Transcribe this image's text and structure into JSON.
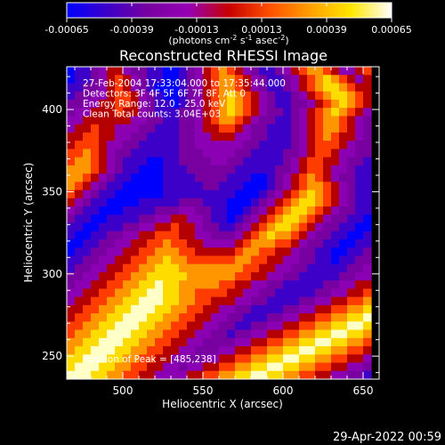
{
  "chart_data": {
    "type": "heatmap",
    "title": "Reconstructed RHESSI Image",
    "xlabel": "Heliocentric X (arcsec)",
    "ylabel": "Heliocentric Y (arcsec)",
    "xlim": [
      465,
      660
    ],
    "ylim": [
      236,
      426
    ],
    "x_ticks": [
      500,
      550,
      600,
      650
    ],
    "y_ticks": [
      250,
      300,
      350,
      400
    ],
    "colorbar": {
      "min": -0.00065,
      "max": 0.00065,
      "tick_values": [
        -0.00065,
        -0.00039,
        -0.00013,
        0.00013,
        0.00039,
        0.00065
      ],
      "tick_labels": [
        "-0.00065",
        "-0.00039",
        "-0.00013",
        "0.00013",
        "0.00039",
        "0.00065"
      ],
      "unit_parts": [
        "(photons cm",
        "-2",
        " s",
        "-1",
        " asec",
        "-2",
        ")"
      ]
    },
    "annotations": [
      "27-Feb-2004 17:33:04.000 to 17:35:44.000",
      "Detectors: 3F 4F 5F 6F 7F 8F, Att 0",
      "Energy Range: 12.0 - 25.0 keV",
      "Clean     Total counts: 3.04E+03"
    ],
    "peak_label": "Position of Peak = [485,238]",
    "grid": false,
    "colormap": [
      "#0000ff",
      "#3c00c8",
      "#7800a0",
      "#8c00b4",
      "#b40000",
      "#ff3c00",
      "#ff9600",
      "#ffdc00",
      "#ffffc8"
    ],
    "grid_x_start": 465,
    "grid_y_start": 426,
    "grid_cell_arcsec": 5,
    "grid_rows_top_to_bottom": [
      "ABBCDEEDCCBBAABCDEFGFEDCBBCDEFGGFEDDEF",
      "ABBCDEFEDCBBAABCDEFGGFEDCBBCDEFGHGFEDE",
      "BBCCDEFEDCBAAABCDEFGGFEDCBBCDEFGHHGFEE",
      "BCCDDEFFEDCBAABCDEFGHGFEDCBBCDEFGHHGFE",
      "CCDDEEFFEDCBBABCDEFGHGFEDCBBCCDEFGHGFE",
      "CDDEEEFEEDCBBBCCDEFGHGFEDCCBCDEFGHGFED",
      "DDEEEEEEDDCCBBCCDEFGGFEDCCBBCDEFGGFEDC",
      "DEEFEEDDDCCBBBCCDEEFFEDCCBBBCDEFGGFEDC",
      "EEFFEEDDCCBBBBCCDDEEEDDCCBBBCDEFGFEEDC",
      "EFFFEDDCCBBBBBCCDDDDDDCCBBBBCDEFFFEDCC",
      "FFGFEDCCBBBBBBCCCDDDDCCBBBBCCDEFFEDDCC",
      "FGGFEDCBBBAABBCCCCDDCCBBBBBCDEFFEEDCCB",
      "GGGFEDCBBAAABBBCCCCCCBBBBBCCDEFFEDDCBB",
      "GGFEDCBBAAAABBBBCCCCBBBAABCDEFGFEDCCBB",
      "GFEDCBBAAAAABBBBBCCBBBAAABCDEFGGFEDCBB",
      "FEDCBBAAAAAABBBBBBBBBAAABCDEFGHGFEDCBB",
      "EDCBBAAAABBBBBCCCBBBAAABCDEFGHHGFEDCBB",
      "DCBBAAABBBBCCCDDCCBBAABCDEFGHHGFEDCCBB",
      "CBBAABBBBCCDDEEDDCBBABCDEFGHHGFEDCCBBA",
      "BBAABBBCCDDEEFEEDCCBBCDEFGHHGFEDCCBBAA",
      "BAABBCCDDEEFFFEEDDCCCDEFGHGGFEDCCBBAAB",
      "AABBCCDDEEFFGFFEEDDDDEFGGGFFEDCCBBAABB",
      "ABBCCDDEEFFGGGFFEEEEEFGGFFEEDCCBBAABBC",
      "BBCCDDEEFFGGHGGFFFFFFGGFFEEDDCCBBABBCC",
      "BCCDDEEFFGGHHHGGGGGGGGFFEEDDCCBBBBBCCD",
      "CCDDEEFFGGHHHHHGGGGGGFFEEDDCCBBBBBCCDD",
      "CDDEEFFGGHHIHHGGGGGFFEEDDCCBBBBBCCDDEE",
      "DDEEFFGGHHIIHHGGFFFFEEDDCCBBBBBCCDDEEF",
      "DEEFFGGHHIIIHHGGFFEEEDDCCBBBBCCDDEEFFG",
      "EEFFGGHHIIIHHGGFFEEDDCCBBBBCCDDEEFFGGH",
      "EFFGGHHIIIHHGGFFEEDDCCBBBCCDDEEFFGGHHI",
      "FFGGHHIIIHHGGFFEEDDCCBBCCDDEEFFGGHHIIH",
      "FGGHHIIIHHGGFFEEDDCCBCCDDEEFFGGHHIIHHG",
      "GGHHIIIHHGGFFEEDDCCCCDDEEFFGGHHIIHHGGF",
      "GHHIIIHHGGFFEEDDCCCDDEEFFGGHHIIHHGGFFE",
      "HHIIIHHGGFFEEDDCCDDEEFFGGHHIIHHGGFFEED",
      "HIIIHHGGFFEEDDCDDEEFFGGHHIIHHGGFFEEDDC",
      "IIIHHGGFFEEDDDDEEFFGGHHIIHHGGFFEEDDCCB"
    ],
    "colorbar_gradient": [
      "#0000ff",
      "#3c00c8",
      "#7800a0",
      "#9600b4",
      "#c80000",
      "#ff5000",
      "#ffa000",
      "#ffe600",
      "#ffffff"
    ]
  },
  "footer": {
    "datetime": "29-Apr-2022 00:59"
  }
}
